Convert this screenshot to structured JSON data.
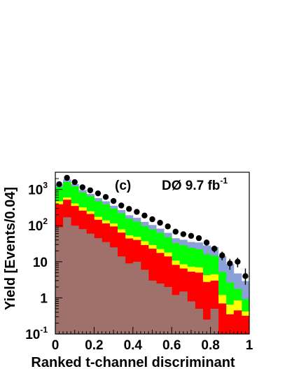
{
  "chart_data": {
    "type": "bar",
    "stacked": true,
    "log_y": true,
    "xlim": [
      0,
      1
    ],
    "ylim": [
      0.1,
      3000
    ],
    "xlabel": "Ranked t-channel discriminant",
    "ylabel": "Yield [Events/0.04]",
    "x_ticks": [
      "0",
      "0.2",
      "0.4",
      "0.6",
      "0.8",
      "1"
    ],
    "y_ticks": [
      {
        "base": "10",
        "exp": "-1"
      },
      {
        "base": "1",
        "exp": ""
      },
      {
        "base": "10",
        "exp": ""
      },
      {
        "base": "10",
        "exp": "2"
      },
      {
        "base": "10",
        "exp": "3"
      }
    ],
    "annotation_panel": "(c)",
    "annotation_lumi_prefix": "DØ  9.7 fb",
    "annotation_lumi_sup": "-1",
    "bin_edges": [
      0,
      0.04,
      0.08,
      0.12,
      0.16,
      0.2,
      0.24,
      0.28,
      0.32,
      0.36,
      0.4,
      0.44,
      0.48,
      0.52,
      0.56,
      0.6,
      0.64,
      0.68,
      0.72,
      0.76,
      0.8,
      0.84,
      0.88,
      0.92,
      0.96,
      1.0
    ],
    "series": [
      {
        "color": "#a0706a",
        "values": [
          90,
          170,
          100,
          80,
          60,
          45,
          35,
          25,
          14,
          9,
          10,
          6,
          3,
          2.5,
          2,
          1.2,
          1.5,
          0.8,
          0.5,
          0.25,
          0.5,
          0.1,
          0.1,
          0.1,
          0.1
        ]
      },
      {
        "color": "#ff0000",
        "values": [
          300,
          350,
          250,
          180,
          150,
          100,
          80,
          70,
          50,
          35,
          30,
          23,
          20,
          15,
          12,
          7,
          5,
          4.5,
          4.5,
          2.5,
          2.5,
          0.6,
          0.25,
          0.35,
          0.22
        ]
      },
      {
        "color": "#ffff00",
        "values": [
          80,
          80,
          60,
          60,
          40,
          30,
          25,
          20,
          15,
          10,
          9,
          8,
          6,
          5,
          4,
          2.5,
          2,
          2,
          2,
          1.5,
          1.5,
          0.5,
          0.3,
          0.4,
          0.1
        ]
      },
      {
        "color": "#00ff00",
        "values": [
          700,
          1000,
          800,
          500,
          400,
          300,
          250,
          180,
          140,
          100,
          80,
          60,
          50,
          40,
          30,
          22,
          20,
          17,
          15,
          12,
          10,
          4,
          2,
          0.9,
          0.5
        ]
      },
      {
        "color": "#8ca0d8",
        "values": [
          200,
          300,
          200,
          150,
          100,
          100,
          80,
          60,
          50,
          40,
          35,
          30,
          25,
          20,
          15,
          12,
          12,
          11,
          12,
          12,
          11,
          9,
          6,
          3,
          2
        ]
      }
    ],
    "data_points": {
      "x": [
        0.02,
        0.06,
        0.1,
        0.14,
        0.18,
        0.22,
        0.26,
        0.3,
        0.34,
        0.38,
        0.42,
        0.46,
        0.5,
        0.54,
        0.58,
        0.62,
        0.66,
        0.7,
        0.74,
        0.78,
        0.82,
        0.86,
        0.9,
        0.94,
        0.98
      ],
      "y": [
        1400,
        2100,
        1600,
        1150,
        950,
        780,
        620,
        480,
        360,
        290,
        240,
        190,
        150,
        120,
        95,
        68,
        58,
        52,
        45,
        34,
        23,
        15,
        9,
        10,
        4
      ],
      "err_lo": [
        1360,
        2050,
        1560,
        1115,
        918,
        750,
        595,
        458,
        341,
        273,
        224,
        176,
        138,
        109,
        85,
        60,
        50,
        45,
        38,
        28,
        18,
        11,
        6,
        7,
        2.3
      ],
      "err_hi": [
        1440,
        2150,
        1640,
        1185,
        982,
        810,
        645,
        502,
        379,
        307,
        256,
        204,
        162,
        131,
        105,
        76,
        66,
        59,
        52,
        40,
        28,
        19,
        12,
        13,
        6.5
      ]
    }
  }
}
